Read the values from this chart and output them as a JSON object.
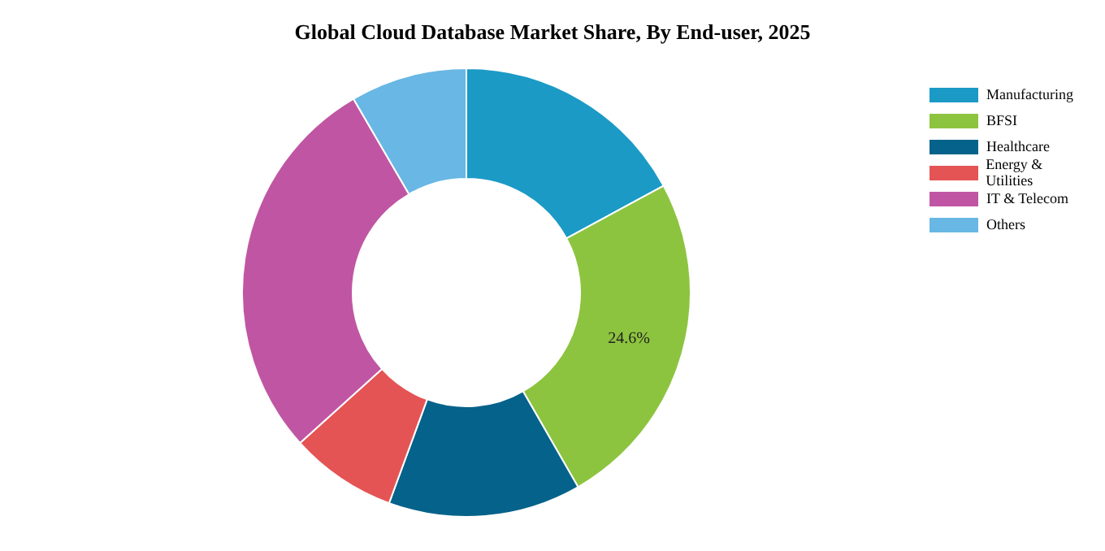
{
  "chart_data": {
    "type": "donut",
    "title": "Global Cloud Database Market Share, By End-user, 2025",
    "categories": [
      "Manufacturing",
      "BFSI",
      "Healthcare",
      "Energy & Utilities",
      "IT & Telecom",
      "Others"
    ],
    "values": [
      17.1,
      24.6,
      13.9,
      7.7,
      28.3,
      8.4
    ],
    "value_labels": [
      null,
      "24.6%",
      null,
      null,
      null,
      null
    ],
    "colors": [
      "#1b9ac6",
      "#8dc43f",
      "#05628a",
      "#e55454",
      "#c056a3",
      "#68b7e4"
    ],
    "legend": "top right"
  }
}
